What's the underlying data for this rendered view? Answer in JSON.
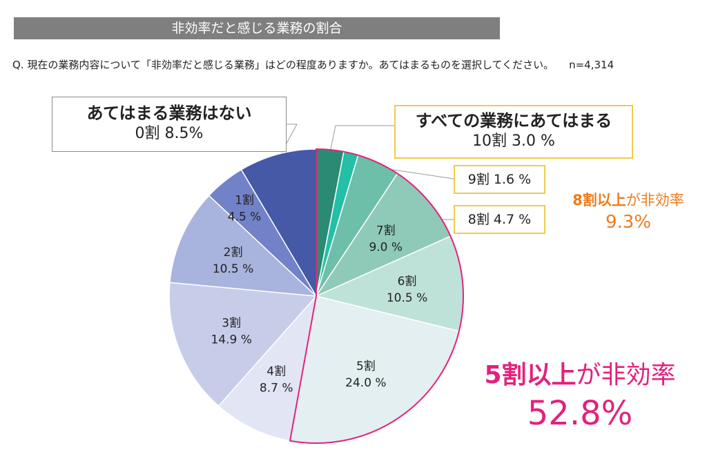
{
  "title": "非効率だと感じる業務の割合",
  "question": "Q.  現在の業務内容について「非効率だと感じる業務」はどの程度ありますか。あてはまるものを選択してください。",
  "sample": "n=4,314",
  "callouts": {
    "none_title": "あてはまる業務はない",
    "none_value": "0割  8.5%",
    "all_title": "すべての業務にあてはまる",
    "all_value": "10割  3.0 %",
    "nine": "9割  1.6 %",
    "eight": "8割  4.7 %"
  },
  "notes": {
    "eight_plus_bold": "8割以上",
    "eight_plus_rest": "が非効率",
    "eight_plus_value": "9.3%",
    "five_plus_bold": "5割以上",
    "five_plus_rest": "が非効率",
    "five_plus_value": "52.8%"
  },
  "colors": {
    "highlight_5plus": "#e3217c",
    "highlight_8plus": "#ee7b1e",
    "box_border": "#f2c94c"
  },
  "chart_data": {
    "type": "pie",
    "start": "12 o'clock",
    "direction": "clockwise",
    "slices": [
      {
        "label": "10割",
        "value": 3.0,
        "pct": "3.0 %",
        "color": "#2a8a74",
        "inside": false
      },
      {
        "label": "9割",
        "value": 1.6,
        "pct": "1.6 %",
        "color": "#23bfa6",
        "inside": false
      },
      {
        "label": "8割",
        "value": 4.7,
        "pct": "4.7 %",
        "color": "#6dbfa9",
        "inside": false
      },
      {
        "label": "7割",
        "value": 9.0,
        "pct": "9.0 %",
        "color": "#8ecab7",
        "inside": true
      },
      {
        "label": "6割",
        "value": 10.5,
        "pct": "10.5 %",
        "color": "#bfe2d8",
        "inside": true
      },
      {
        "label": "5割",
        "value": 24.0,
        "pct": "24.0 %",
        "color": "#e3eff1",
        "inside": true
      },
      {
        "label": "4割",
        "value": 8.7,
        "pct": "8.7 %",
        "color": "#e2e5f4",
        "inside": true
      },
      {
        "label": "3割",
        "value": 14.9,
        "pct": "14.9 %",
        "color": "#c7cde9",
        "inside": true
      },
      {
        "label": "2割",
        "value": 10.5,
        "pct": "10.5 %",
        "color": "#a8b3de",
        "inside": true
      },
      {
        "label": "1割",
        "value": 4.5,
        "pct": "4.5 %",
        "color": "#7282c9",
        "inside": true
      },
      {
        "label": "0割",
        "value": 8.5,
        "pct": "8.5 %",
        "color": "#4559a6",
        "inside": false
      }
    ]
  }
}
